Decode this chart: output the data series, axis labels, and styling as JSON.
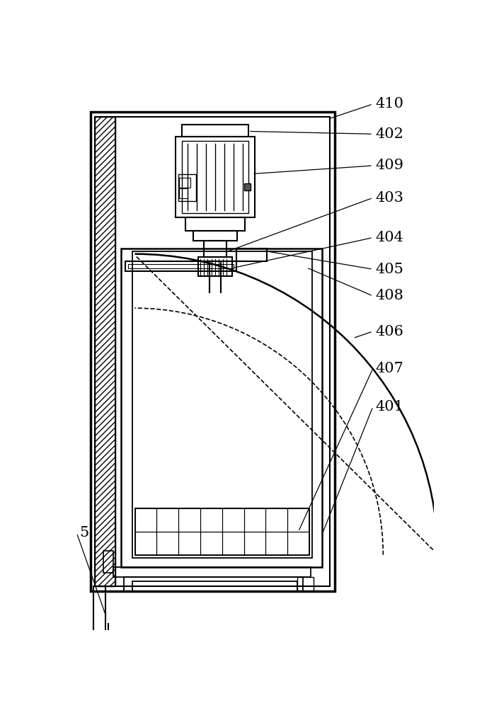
{
  "bg_color": "#ffffff",
  "line_color": "#000000",
  "label_color": "#000000",
  "fig_width": 6.81,
  "fig_height": 10.0
}
